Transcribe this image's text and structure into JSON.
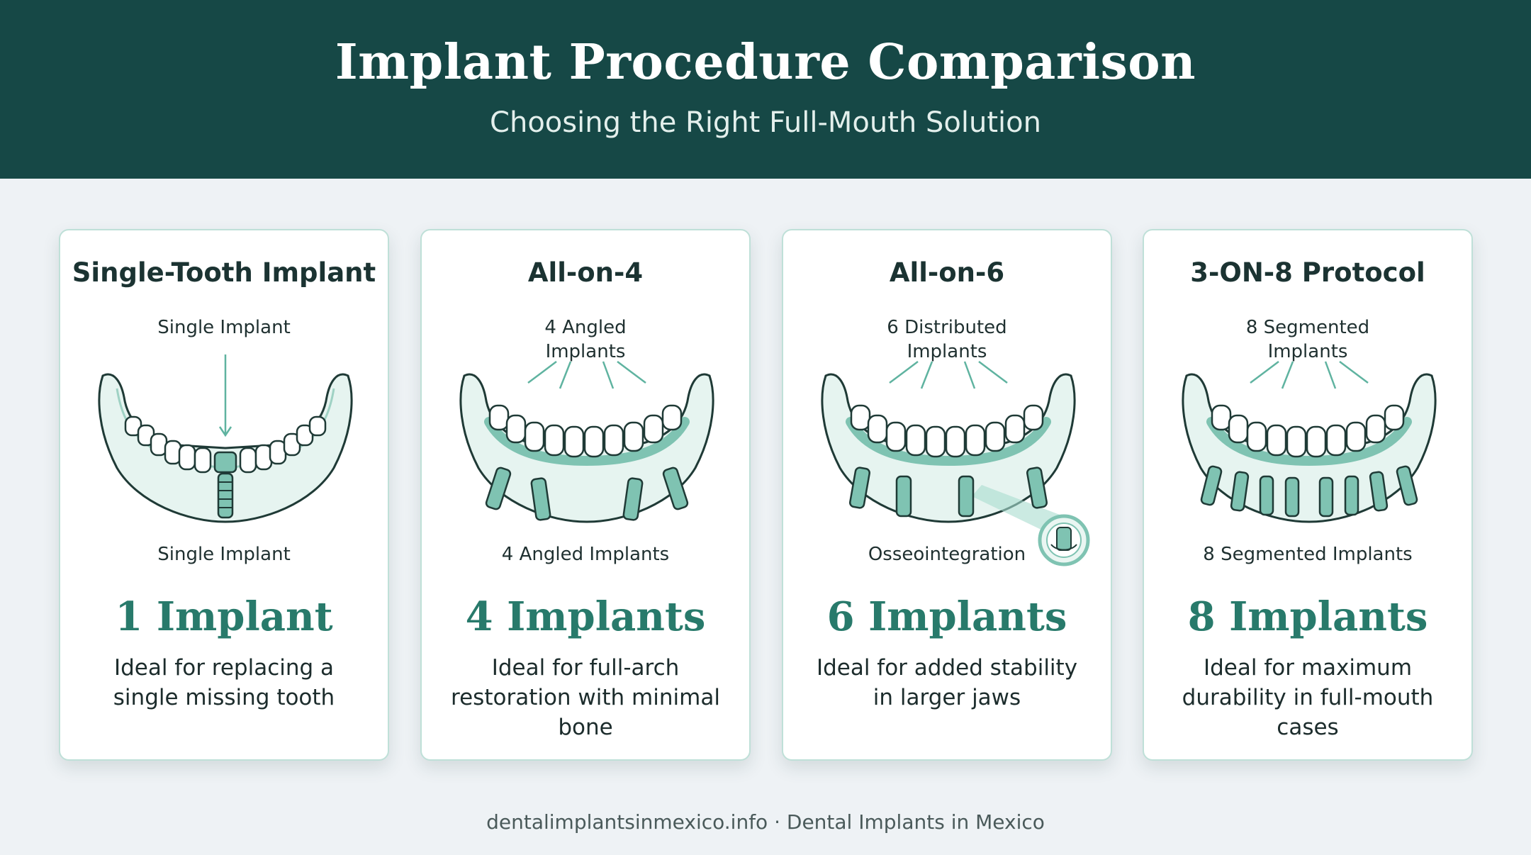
{
  "header": {
    "title": "Implant Procedure Comparison",
    "subtitle": "Choosing the Right Full-Mouth Solution"
  },
  "cards": [
    {
      "title": "Single-Tooth Implant",
      "top_label": "Single Implant",
      "bottom_label": "Single Implant",
      "count": "1 Implant",
      "description": "Ideal for replacing a single missing tooth"
    },
    {
      "title": "All-on-4",
      "top_label": "4 Angled\nImplants",
      "bottom_label": "4 Angled Implants",
      "count": "4 Implants",
      "description": "Ideal for full-arch restoration with minimal bone"
    },
    {
      "title": "All-on-6",
      "top_label": "6 Distributed\nImplants",
      "bottom_label": "Osseointegration",
      "count": "6 Implants",
      "description": "Ideal for added stability in larger jaws"
    },
    {
      "title": "3-ON-8 Protocol",
      "top_label": "8 Segmented\nImplants",
      "bottom_label": "8 Segmented Implants",
      "count": "8 Implants",
      "description": "Ideal for maximum durability in full-mouth cases"
    }
  ],
  "footer": {
    "text": "dentalimplantsinmexico.info · Dental Implants in Mexico"
  },
  "colors": {
    "header_bg": "#164846",
    "accent": "#287a6b",
    "jaw_fill": "#e6f4f0",
    "implant": "#7fc3b2",
    "outline": "#1f3a36"
  }
}
